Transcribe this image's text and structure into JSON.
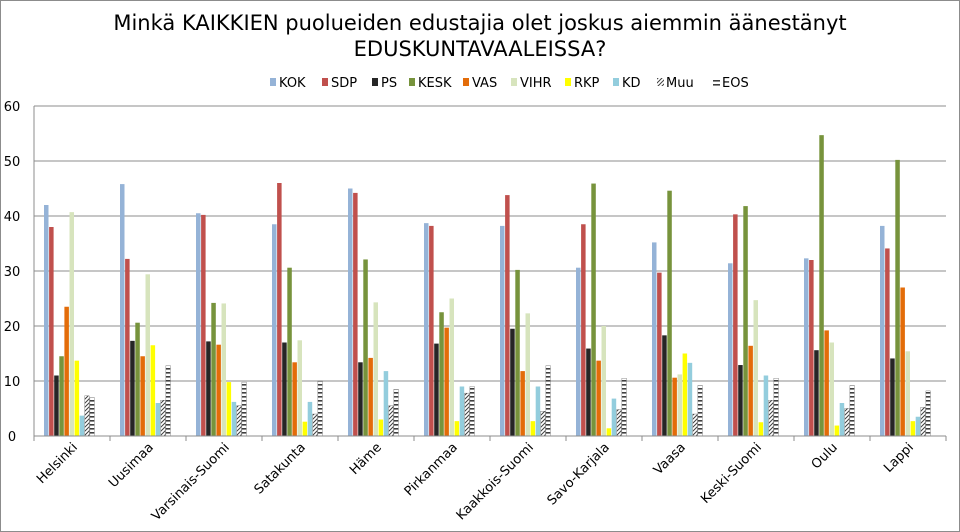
{
  "chart_data": {
    "type": "bar",
    "title_line1": "Minkä KAIKKIEN puolueiden edustajia olet joskus aiemmin äänestänyt",
    "title_line2": "EDUSKUNTAVAALEISSA?",
    "ylim": [
      0,
      60
    ],
    "yticks": [
      0,
      10,
      20,
      30,
      40,
      50,
      60
    ],
    "grid": true,
    "legend_position": "top",
    "categories": [
      "Helsinki",
      "Uusimaa",
      "Varsinais-Suomi",
      "Satakunta",
      "Häme",
      "Pirkanmaa",
      "Kaakkois-Suomi",
      "Savo-Karjala",
      "Vaasa",
      "Keski-Suomi",
      "Oulu",
      "Lappi"
    ],
    "series": [
      {
        "name": "KOK",
        "color": "#95b3d7",
        "pattern": "solid",
        "values": [
          42,
          45.8,
          40.5,
          38.5,
          45,
          38.7,
          38.2,
          30.6,
          35.2,
          31.4,
          32.3,
          38.2
        ]
      },
      {
        "name": "SDP",
        "color": "#c0504d",
        "pattern": "solid",
        "values": [
          38,
          32.2,
          40.2,
          46,
          44.2,
          38.2,
          43.8,
          38.5,
          29.7,
          40.3,
          32,
          34.1
        ]
      },
      {
        "name": "PS",
        "color": "#262626",
        "pattern": "solid",
        "values": [
          11,
          17.3,
          17.2,
          17,
          13.4,
          16.8,
          19.5,
          15.9,
          18.3,
          12.9,
          15.6,
          14.1
        ]
      },
      {
        "name": "KESK",
        "color": "#77933c",
        "pattern": "solid",
        "values": [
          14.5,
          20.6,
          24.2,
          30.6,
          32.1,
          22.5,
          30.2,
          45.9,
          44.6,
          41.8,
          54.7,
          50.2
        ]
      },
      {
        "name": "VAS",
        "color": "#e36c09",
        "pattern": "solid",
        "values": [
          23.5,
          14.5,
          16.6,
          13.4,
          14.2,
          19.7,
          11.8,
          13.7,
          10.6,
          16.4,
          19.2,
          27
        ]
      },
      {
        "name": "VIHR",
        "color": "#d7e4bd",
        "pattern": "solid",
        "values": [
          40.7,
          29.4,
          24.1,
          17.4,
          24.3,
          25,
          22.3,
          20,
          11.2,
          24.7,
          17,
          15.4
        ]
      },
      {
        "name": "RKP",
        "color": "#ffff00",
        "pattern": "solid",
        "values": [
          13.7,
          16.5,
          9.8,
          2.6,
          3,
          2.7,
          2.7,
          1.4,
          15,
          2.5,
          1.9,
          2.7
        ]
      },
      {
        "name": "KD",
        "color": "#93cddd",
        "pattern": "solid",
        "values": [
          3.7,
          6,
          6.2,
          6.2,
          11.8,
          9,
          9,
          6.8,
          13.3,
          11,
          6,
          3.5
        ]
      },
      {
        "name": "Muu",
        "color": "#404040",
        "pattern": "diagonal",
        "values": [
          7.3,
          6.5,
          5.5,
          4,
          5.5,
          7.8,
          4.5,
          4.8,
          4,
          6.5,
          5,
          5.2
        ]
      },
      {
        "name": "EOS",
        "color": "#404040",
        "pattern": "horizontal",
        "values": [
          7,
          12.8,
          9.8,
          10,
          8.5,
          9,
          12.8,
          10.5,
          9.2,
          10.5,
          9.2,
          8.2
        ]
      }
    ]
  }
}
